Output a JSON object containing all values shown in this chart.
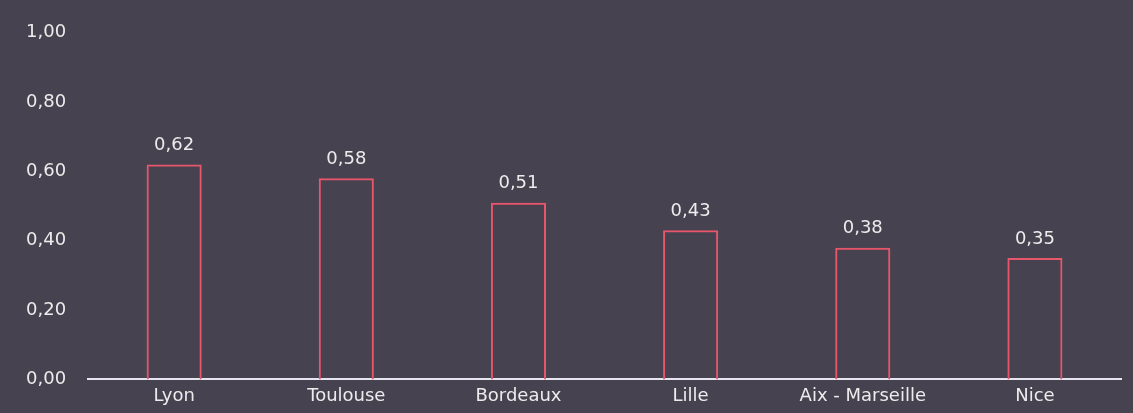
{
  "chart_data": {
    "type": "bar",
    "categories": [
      "Lyon",
      "Toulouse",
      "Bordeaux",
      "Lille",
      "Aix - Marseille",
      "Nice"
    ],
    "values": [
      0.62,
      0.58,
      0.51,
      0.43,
      0.38,
      0.35
    ],
    "value_labels": [
      "0,62",
      "0,58",
      "0,51",
      "0,43",
      "0,38",
      "0,35"
    ],
    "color": "#e8566c",
    "ylim": [
      0,
      1
    ],
    "yticks": [
      {
        "value": 0,
        "label": "0,00"
      },
      {
        "value": 0.2,
        "label": "0,20"
      },
      {
        "value": 0.4,
        "label": "0,40"
      },
      {
        "value": 0.6,
        "label": "0,60"
      },
      {
        "value": 0.8,
        "label": "0,80"
      },
      {
        "value": 1,
        "label": "1,00"
      }
    ],
    "grid": false,
    "legend": false
  }
}
